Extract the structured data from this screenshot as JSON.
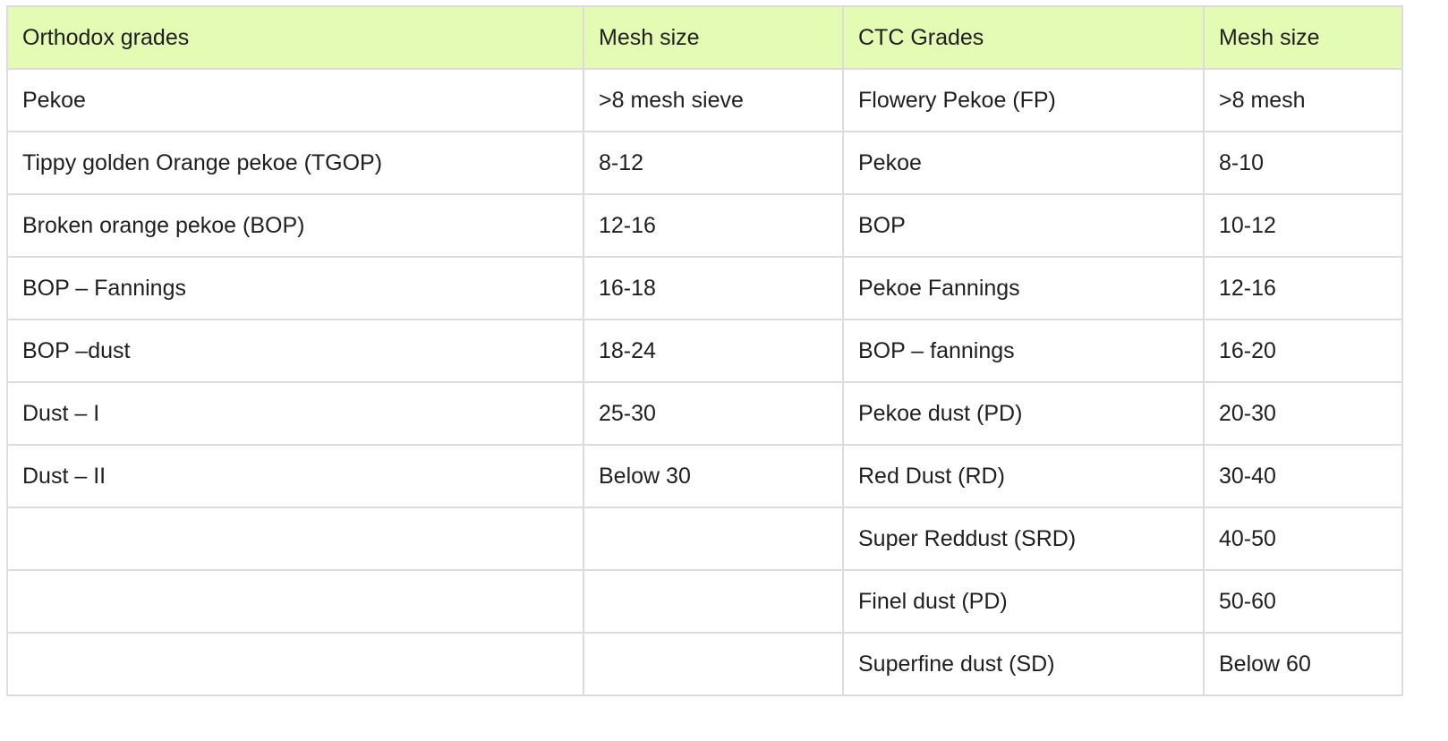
{
  "table": {
    "headers": [
      "Orthodox grades",
      "Mesh size",
      "CTC Grades",
      "Mesh size"
    ],
    "rows": [
      [
        "Pekoe",
        ">8 mesh sieve",
        "Flowery Pekoe (FP)",
        ">8 mesh"
      ],
      [
        "Tippy golden Orange pekoe (TGOP)",
        "8-12",
        "Pekoe",
        "8-10"
      ],
      [
        "Broken orange pekoe (BOP)",
        "12-16",
        "BOP",
        "10-12"
      ],
      [
        "BOP – Fannings",
        "16-18",
        "Pekoe Fannings",
        "12-16"
      ],
      [
        "BOP –dust",
        "18-24",
        "BOP – fannings",
        "16-20"
      ],
      [
        "Dust – I",
        "25-30",
        "Pekoe dust (PD)",
        "20-30"
      ],
      [
        "Dust – II",
        "Below 30",
        "Red Dust (RD)",
        "30-40"
      ],
      [
        "",
        "",
        "Super Reddust (SRD)",
        "40-50"
      ],
      [
        "",
        "",
        "Finel dust (PD)",
        "50-60"
      ],
      [
        "",
        "",
        "Superfine dust (SD)",
        "Below 60"
      ]
    ]
  },
  "colors": {
    "header_background": "#e3fbb2",
    "border": "#dcdcdc",
    "text": "#1f1f1f"
  }
}
